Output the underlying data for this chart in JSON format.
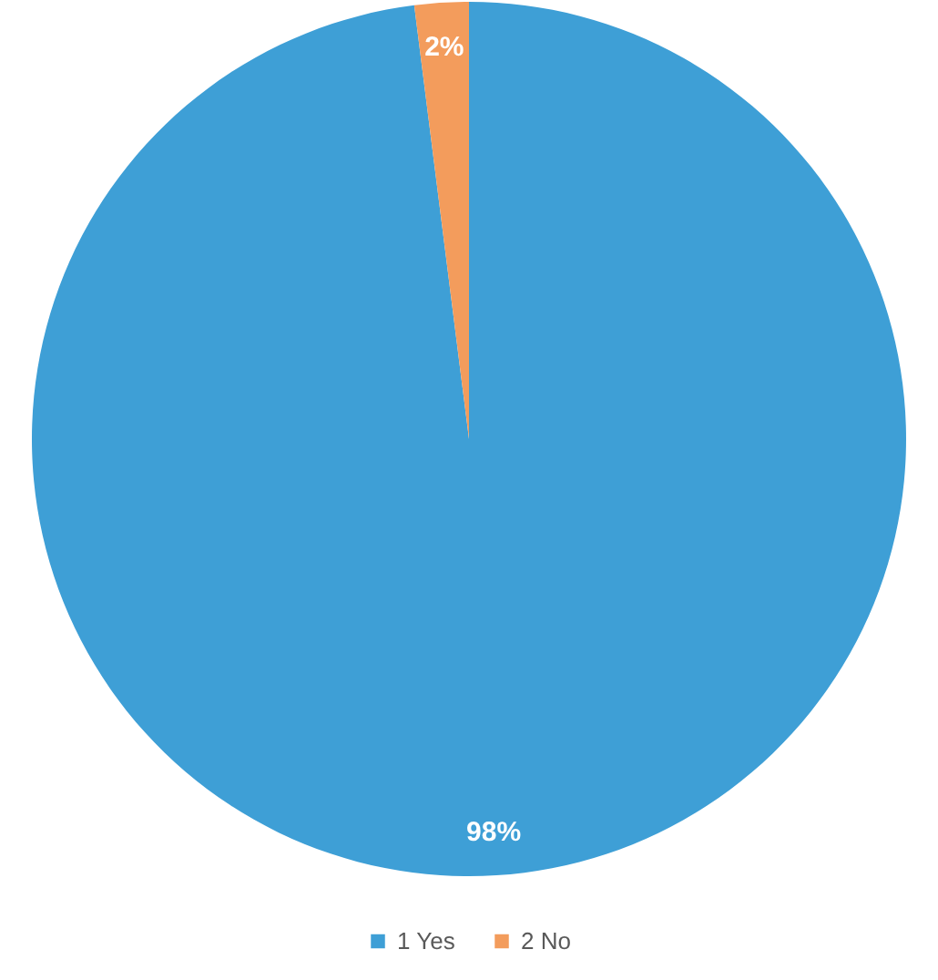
{
  "chart_data": {
    "type": "pie",
    "categories": [
      "1 Yes",
      "2 No"
    ],
    "values": [
      98,
      2
    ],
    "value_labels": [
      "98%",
      "2%"
    ],
    "colors": [
      "#3e9fd6",
      "#f39c5c"
    ],
    "legend": "bottom"
  }
}
